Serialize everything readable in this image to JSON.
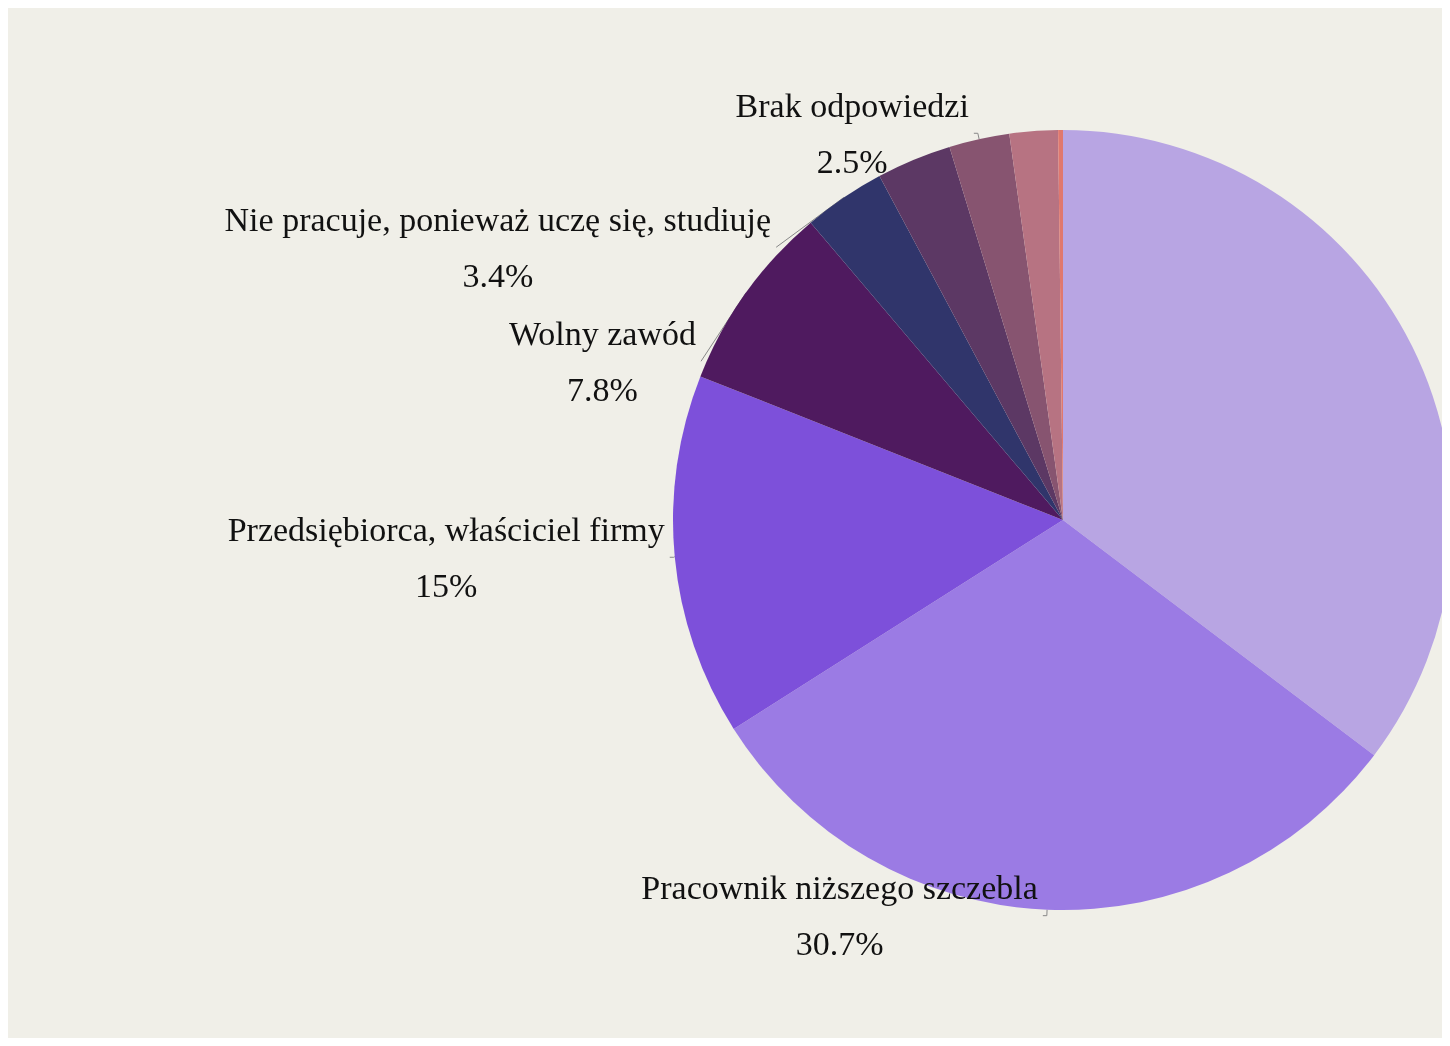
{
  "chart_data": {
    "type": "pie",
    "categories": [
      null,
      "Pracownik niższego szczebla",
      "Przedsiębiorca, właściciel firmy",
      "Wolny zawód",
      "Nie pracuje, ponieważ uczę się, studiuję",
      null,
      "Brak odpowiedzi",
      null,
      null
    ],
    "values": [
      35.3,
      30.7,
      15,
      7.8,
      3.4,
      3.1,
      2.5,
      2.0,
      0.2
    ],
    "value_labels": [
      null,
      "30.7%",
      "15%",
      "7.8%",
      "3.4%",
      null,
      "2.5%",
      null,
      null
    ],
    "colors": [
      "#b8a5e3",
      "#9b7be4",
      "#7d50da",
      "#4f1a5f",
      "#30356b",
      "#5c3864",
      "#875470",
      "#b77382",
      "#e0786f"
    ],
    "legend": false
  }
}
